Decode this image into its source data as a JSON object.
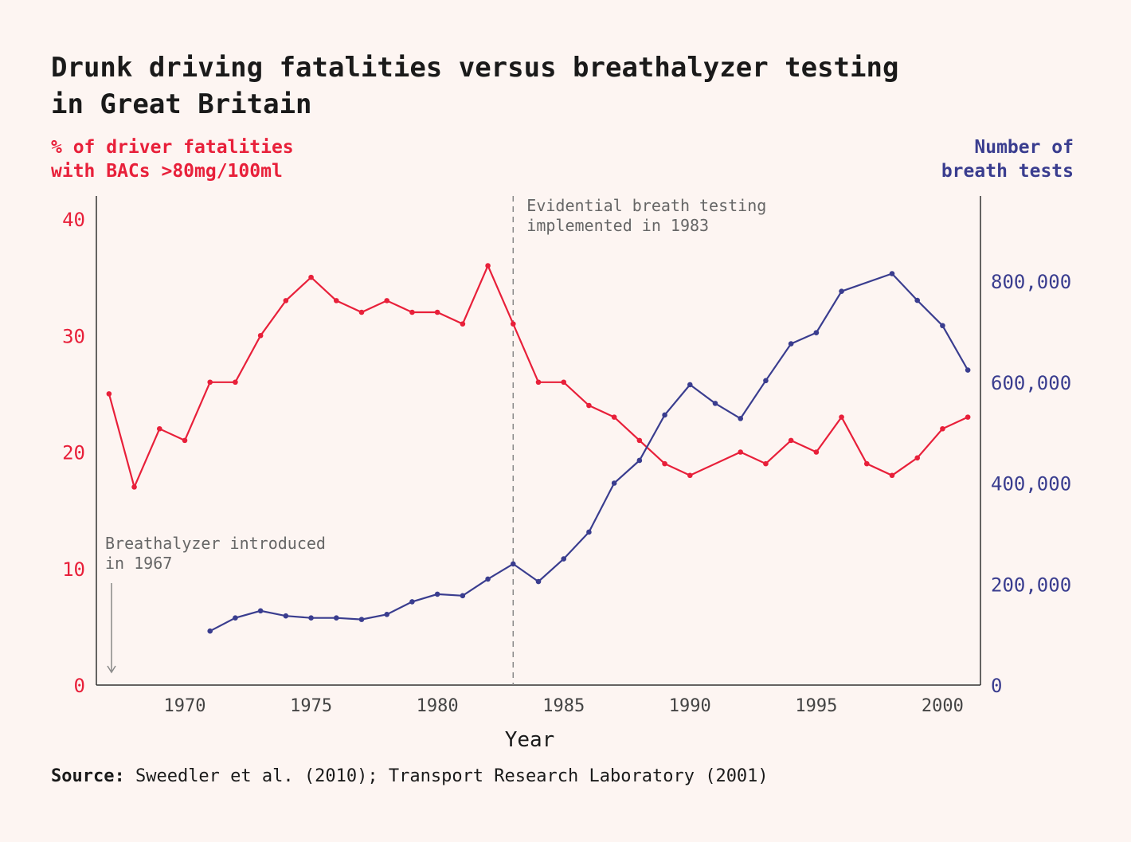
{
  "title_line1": "Drunk driving fatalities versus breathalyzer testing",
  "title_line2": "in Great Britain",
  "left_axis_title_line1": "% of driver fatalities",
  "left_axis_title_line2": "with BACs >80mg/100ml",
  "right_axis_title_line1": "Number of",
  "right_axis_title_line2": "breath tests",
  "source_label": "Source:",
  "source_text": " Sweedler et al. (2010); Transport Research Laboratory (2001)",
  "colors": {
    "fatalities": "#e8203a",
    "tests": "#3a3d8f",
    "annotation": "#666666",
    "axis": "#333333"
  },
  "chart_data": {
    "type": "line",
    "xlabel": "Year",
    "xlim": [
      1966.5,
      2001.5
    ],
    "x_ticks": [
      1970,
      1975,
      1980,
      1985,
      1990,
      1995,
      2000
    ],
    "y_left": {
      "label": "% of driver fatalities with BACs >80mg/100ml",
      "lim": [
        0,
        40
      ],
      "ticks": [
        0,
        10,
        20,
        30,
        40
      ]
    },
    "y_right": {
      "label": "Number of breath tests",
      "lim": [
        0,
        900000
      ],
      "ticks": [
        0,
        200000,
        400000,
        600000,
        800000
      ],
      "tick_labels": [
        "0",
        "200,000",
        "400,000",
        "600,000",
        "800,000"
      ]
    },
    "series": [
      {
        "axis": "left",
        "x": [
          1967,
          1968,
          1969,
          1970,
          1971,
          1972,
          1973,
          1974,
          1975,
          1976,
          1977,
          1978,
          1979,
          1980,
          1981,
          1982,
          1983,
          1984,
          1985,
          1986,
          1987,
          1988,
          1989,
          1990,
          1992,
          1993,
          1994,
          1995,
          1996,
          1997,
          1998,
          1999,
          2000,
          2001
        ],
        "values": [
          25,
          17,
          22,
          21,
          26,
          26,
          30,
          33,
          35,
          33,
          32,
          33,
          32,
          32,
          31,
          36,
          31,
          26,
          26,
          24,
          23,
          21,
          19,
          18,
          20,
          19,
          21,
          20,
          23,
          19,
          18,
          19.5,
          22,
          23
        ]
      },
      {
        "axis": "right",
        "x": [
          1971,
          1972,
          1973,
          1974,
          1975,
          1976,
          1977,
          1978,
          1979,
          1980,
          1981,
          1982,
          1983,
          1984,
          1985,
          1986,
          1987,
          1988,
          1989,
          1990,
          1991,
          1992,
          1993,
          1994,
          1995,
          1996,
          1998,
          1999,
          2000,
          2001
        ],
        "values": [
          107000,
          133000,
          147000,
          137000,
          133000,
          133000,
          130000,
          140000,
          165000,
          180000,
          177000,
          210000,
          240000,
          205000,
          250000,
          303000,
          400000,
          445000,
          535000,
          595000,
          558000,
          528000,
          603000,
          676000,
          698000,
          780000,
          815000,
          762000,
          712000,
          624000
        ]
      }
    ],
    "annotations": [
      {
        "text_line1": "Breathalyzer introduced",
        "text_line2": "in 1967",
        "x": 1967
      },
      {
        "text_line1": "Evidential breath testing",
        "text_line2": "implemented in 1983",
        "x": 1983
      }
    ]
  }
}
